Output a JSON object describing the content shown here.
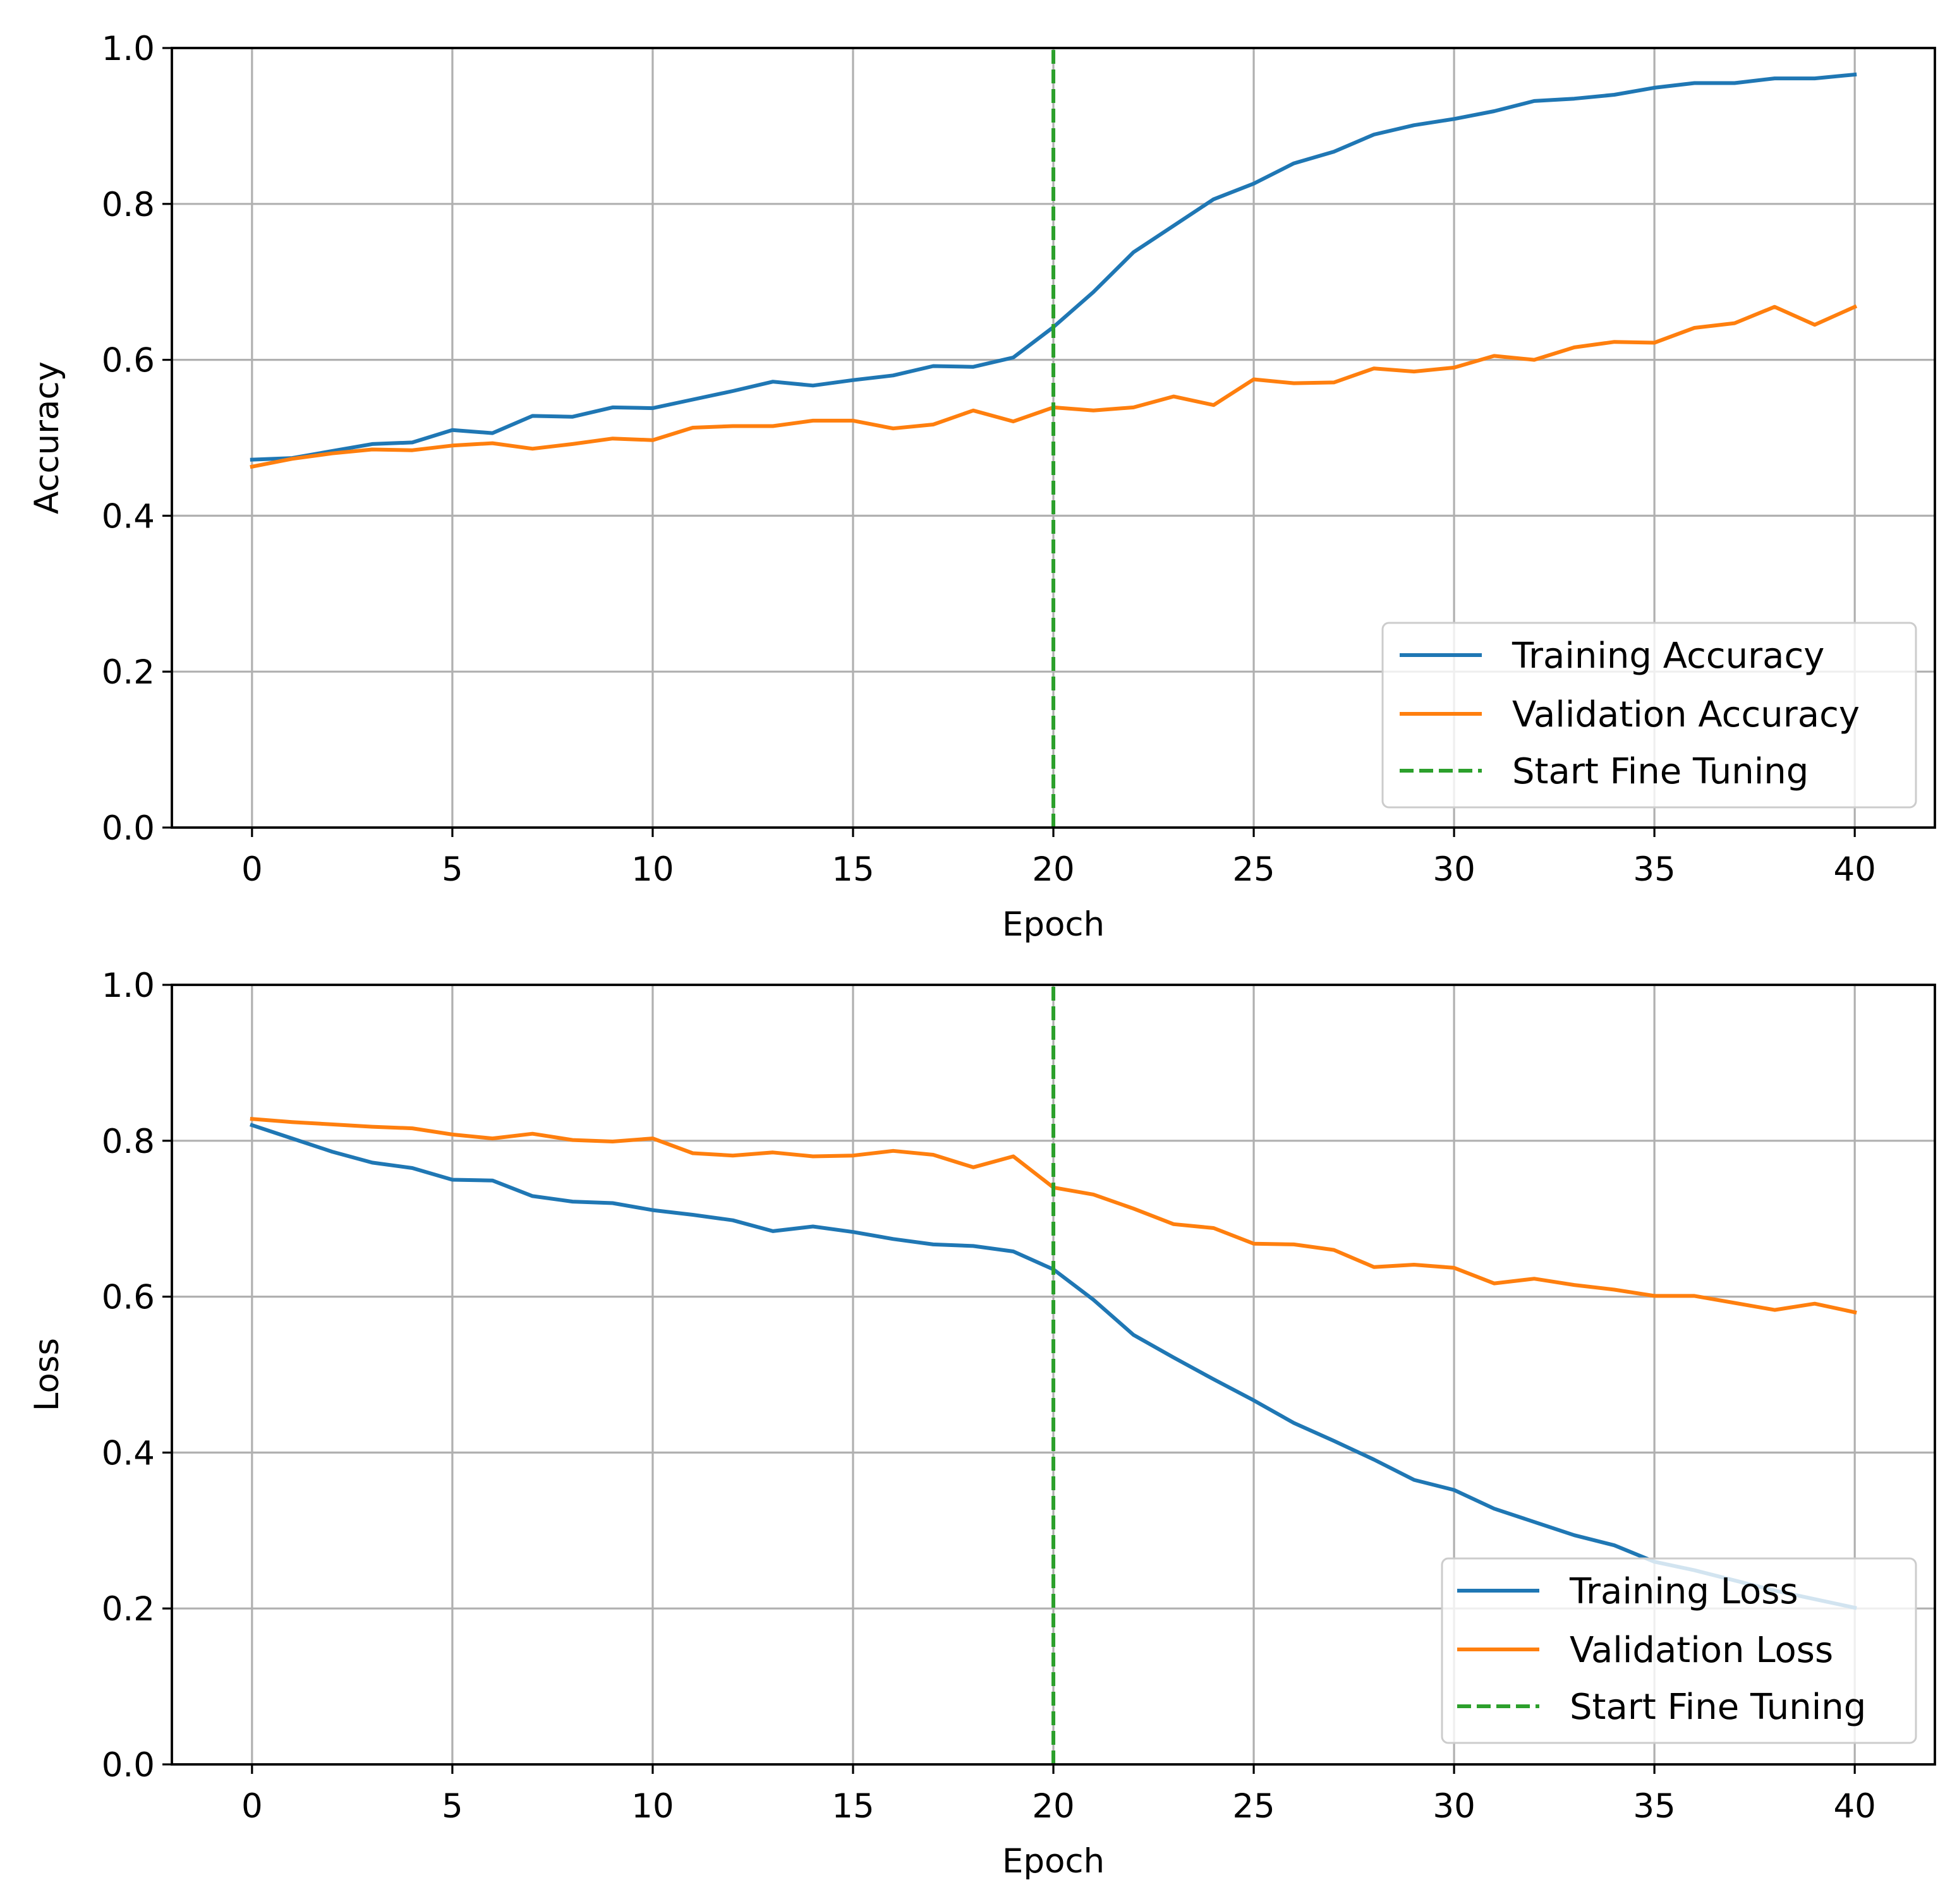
{
  "chart_data": [
    {
      "type": "line",
      "xlabel": "Epoch",
      "ylabel": "Accuracy",
      "xlim": [
        -2,
        42
      ],
      "ylim": [
        0.0,
        1.0
      ],
      "xticks": [
        0,
        5,
        10,
        15,
        20,
        25,
        30,
        35,
        40
      ],
      "xtick_labels": [
        "0",
        "5",
        "10",
        "15",
        "20",
        "25",
        "30",
        "35",
        "40"
      ],
      "yticks": [
        0.0,
        0.2,
        0.4,
        0.6,
        0.8,
        1.0
      ],
      "ytick_labels": [
        "0.0",
        "0.2",
        "0.4",
        "0.6",
        "0.8",
        "1.0"
      ],
      "grid": true,
      "legend_position": "lower-right",
      "series": [
        {
          "name": "Training Accuracy",
          "color": "#1f77b4",
          "x": [
            0,
            1,
            2,
            3,
            4,
            5,
            6,
            7,
            8,
            9,
            10,
            11,
            12,
            13,
            14,
            15,
            16,
            17,
            18,
            19,
            20,
            21,
            22,
            23,
            24,
            25,
            26,
            27,
            28,
            29,
            30,
            31,
            32,
            33,
            34,
            35,
            36,
            37,
            38,
            39,
            40
          ],
          "values": [
            0.472,
            0.474,
            0.483,
            0.492,
            0.494,
            0.51,
            0.506,
            0.528,
            0.527,
            0.539,
            0.538,
            0.549,
            0.56,
            0.572,
            0.567,
            0.574,
            0.58,
            0.592,
            0.591,
            0.603,
            0.642,
            0.687,
            0.738,
            0.772,
            0.806,
            0.826,
            0.852,
            0.867,
            0.889,
            0.901,
            0.909,
            0.919,
            0.932,
            0.935,
            0.94,
            0.949,
            0.955,
            0.955,
            0.961,
            0.961,
            0.966
          ]
        },
        {
          "name": "Validation Accuracy",
          "color": "#ff7f0e",
          "x": [
            0,
            1,
            2,
            3,
            4,
            5,
            6,
            7,
            8,
            9,
            10,
            11,
            12,
            13,
            14,
            15,
            16,
            17,
            18,
            19,
            20,
            21,
            22,
            23,
            24,
            25,
            26,
            27,
            28,
            29,
            30,
            31,
            32,
            33,
            34,
            35,
            36,
            37,
            38,
            39,
            40
          ],
          "values": [
            0.463,
            0.473,
            0.48,
            0.485,
            0.484,
            0.49,
            0.493,
            0.486,
            0.492,
            0.499,
            0.497,
            0.513,
            0.515,
            0.515,
            0.522,
            0.522,
            0.512,
            0.517,
            0.535,
            0.521,
            0.539,
            0.535,
            0.539,
            0.553,
            0.542,
            0.575,
            0.57,
            0.571,
            0.589,
            0.585,
            0.59,
            0.605,
            0.6,
            0.616,
            0.623,
            0.622,
            0.641,
            0.647,
            0.668,
            0.645,
            0.668
          ]
        },
        {
          "name": "Start Fine Tuning",
          "color": "#2ca02c",
          "style": "dashed",
          "x": [
            20,
            20
          ],
          "values": [
            0.0,
            1.0
          ]
        }
      ]
    },
    {
      "type": "line",
      "xlabel": "Epoch",
      "ylabel": "Loss",
      "xlim": [
        -2,
        42
      ],
      "ylim": [
        0.0,
        1.0
      ],
      "xticks": [
        0,
        5,
        10,
        15,
        20,
        25,
        30,
        35,
        40
      ],
      "xtick_labels": [
        "0",
        "5",
        "10",
        "15",
        "20",
        "25",
        "30",
        "35",
        "40"
      ],
      "yticks": [
        0.0,
        0.2,
        0.4,
        0.6,
        0.8,
        1.0
      ],
      "ytick_labels": [
        "0.0",
        "0.2",
        "0.4",
        "0.6",
        "0.8",
        "1.0"
      ],
      "grid": true,
      "legend_position": "lower-right",
      "series": [
        {
          "name": "Training Loss",
          "color": "#1f77b4",
          "x": [
            0,
            1,
            2,
            3,
            4,
            5,
            6,
            7,
            8,
            9,
            10,
            11,
            12,
            13,
            14,
            15,
            16,
            17,
            18,
            19,
            20,
            21,
            22,
            23,
            24,
            25,
            26,
            27,
            28,
            29,
            30,
            31,
            32,
            33,
            34,
            35,
            36,
            37,
            38,
            39,
            40
          ],
          "values": [
            0.82,
            0.803,
            0.786,
            0.772,
            0.765,
            0.75,
            0.749,
            0.729,
            0.722,
            0.72,
            0.711,
            0.705,
            0.698,
            0.684,
            0.69,
            0.683,
            0.674,
            0.667,
            0.665,
            0.658,
            0.635,
            0.596,
            0.551,
            0.522,
            0.494,
            0.467,
            0.438,
            0.415,
            0.391,
            0.365,
            0.352,
            0.328,
            0.311,
            0.294,
            0.281,
            0.26,
            0.249,
            0.236,
            0.223,
            0.212,
            0.201
          ]
        },
        {
          "name": "Validation Loss",
          "color": "#ff7f0e",
          "x": [
            0,
            1,
            2,
            3,
            4,
            5,
            6,
            7,
            8,
            9,
            10,
            11,
            12,
            13,
            14,
            15,
            16,
            17,
            18,
            19,
            20,
            21,
            22,
            23,
            24,
            25,
            26,
            27,
            28,
            29,
            30,
            31,
            32,
            33,
            34,
            35,
            36,
            37,
            38,
            39,
            40
          ],
          "values": [
            0.828,
            0.824,
            0.821,
            0.818,
            0.816,
            0.808,
            0.803,
            0.809,
            0.801,
            0.799,
            0.803,
            0.784,
            0.781,
            0.785,
            0.78,
            0.781,
            0.787,
            0.782,
            0.766,
            0.78,
            0.74,
            0.731,
            0.713,
            0.693,
            0.688,
            0.668,
            0.667,
            0.66,
            0.638,
            0.641,
            0.637,
            0.617,
            0.623,
            0.615,
            0.609,
            0.601,
            0.601,
            0.592,
            0.583,
            0.591,
            0.58
          ]
        },
        {
          "name": "Start Fine Tuning",
          "color": "#2ca02c",
          "style": "dashed",
          "x": [
            20,
            20
          ],
          "values": [
            0.0,
            1.0
          ]
        }
      ]
    }
  ]
}
